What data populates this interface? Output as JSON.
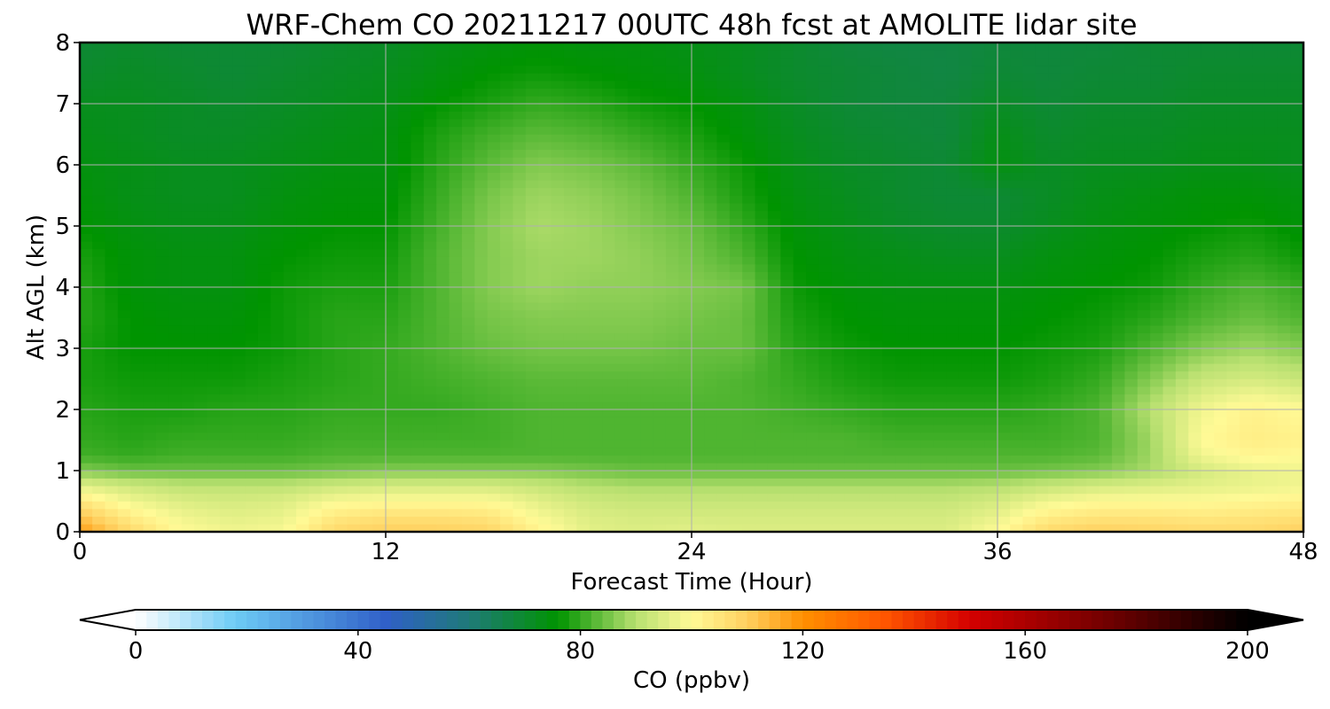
{
  "chart_data": {
    "type": "heatmap",
    "title": "WRF-Chem CO  20211217 00UTC 48h fcst at AMOLITE lidar site",
    "xlabel": "Forecast Time (Hour)",
    "ylabel": "Alt AGL (km)",
    "xlim": [
      0,
      48
    ],
    "ylim": [
      0,
      8
    ],
    "xticks": [
      0,
      12,
      24,
      36,
      48
    ],
    "yticks": [
      0,
      1,
      2,
      3,
      4,
      5,
      6,
      7,
      8
    ],
    "grid": true,
    "x_hours": [
      0,
      2,
      4,
      6,
      8,
      10,
      12,
      14,
      16,
      18,
      20,
      22,
      24,
      26,
      28,
      30,
      32,
      34,
      36,
      38,
      40,
      42,
      44,
      46,
      48
    ],
    "alt_km": [
      0,
      0.25,
      0.5,
      0.75,
      1.0,
      1.25,
      1.5,
      2.0,
      2.5,
      3.0,
      3.5,
      4.0,
      4.5,
      5.0,
      5.5,
      6.0,
      6.5,
      7.0,
      7.5,
      8.0
    ],
    "co_ppbv": [
      [
        118,
        108,
        100,
        98,
        99,
        108,
        110,
        110,
        109,
        102,
        96,
        95,
        96,
        95,
        95,
        95,
        95,
        95,
        100,
        108,
        110,
        109,
        108,
        108,
        110
      ],
      [
        112,
        103,
        98,
        96,
        97,
        104,
        106,
        106,
        105,
        99,
        95,
        94,
        94,
        94,
        94,
        94,
        94,
        94,
        97,
        103,
        105,
        105,
        104,
        105,
        106
      ],
      [
        104,
        98,
        95,
        94,
        95,
        99,
        100,
        100,
        100,
        96,
        93,
        92,
        92,
        92,
        92,
        92,
        92,
        92,
        94,
        98,
        100,
        100,
        100,
        101,
        102
      ],
      [
        96,
        93,
        91,
        91,
        91,
        93,
        94,
        94,
        94,
        92,
        90,
        89,
        89,
        89,
        89,
        89,
        89,
        89,
        90,
        92,
        94,
        95,
        96,
        97,
        98
      ],
      [
        86,
        84,
        84,
        84,
        84,
        85,
        86,
        86,
        86,
        86,
        85,
        84,
        84,
        84,
        84,
        84,
        84,
        84,
        84,
        85,
        86,
        89,
        94,
        97,
        98
      ],
      [
        81,
        80,
        81,
        81,
        81,
        82,
        82,
        82,
        82,
        82,
        82,
        82,
        82,
        82,
        82,
        82,
        82,
        82,
        82,
        82,
        83,
        88,
        98,
        101,
        100
      ],
      [
        80,
        79,
        80,
        80,
        80,
        81,
        81,
        81,
        81,
        82,
        82,
        82,
        82,
        82,
        82,
        82,
        81,
        81,
        81,
        81,
        82,
        88,
        100,
        103,
        102
      ],
      [
        79,
        78,
        78,
        79,
        79,
        80,
        80,
        80,
        81,
        82,
        82,
        82,
        82,
        82,
        81,
        80,
        79,
        79,
        79,
        80,
        82,
        90,
        98,
        102,
        100
      ],
      [
        78,
        77,
        77,
        77,
        78,
        79,
        80,
        81,
        82,
        83,
        83,
        83,
        83,
        82,
        80,
        78,
        77,
        77,
        77,
        78,
        80,
        86,
        92,
        94,
        92
      ],
      [
        78,
        76,
        76,
        76,
        77,
        79,
        80,
        82,
        84,
        85,
        85,
        85,
        84,
        84,
        79,
        77,
        76,
        76,
        76,
        77,
        78,
        82,
        86,
        88,
        86
      ],
      [
        79,
        76,
        75,
        75,
        77,
        79,
        79,
        82,
        85,
        86,
        86,
        86,
        85,
        84,
        78,
        76,
        75,
        75,
        75,
        76,
        77,
        79,
        82,
        84,
        82
      ],
      [
        79,
        75,
        74,
        74,
        77,
        78,
        78,
        82,
        86,
        88,
        87,
        87,
        86,
        85,
        77,
        75,
        74,
        74,
        74,
        75,
        76,
        77,
        80,
        82,
        80
      ],
      [
        78,
        75,
        74,
        74,
        76,
        77,
        77,
        82,
        86,
        88,
        88,
        87,
        85,
        82,
        76,
        74,
        73,
        72,
        72,
        74,
        75,
        76,
        78,
        79,
        77
      ],
      [
        76,
        74,
        73,
        73,
        75,
        76,
        76,
        81,
        86,
        89,
        88,
        86,
        84,
        80,
        75,
        73,
        71,
        70,
        70,
        72,
        74,
        75,
        76,
        77,
        75
      ],
      [
        75,
        73,
        72,
        72,
        74,
        75,
        75,
        80,
        85,
        88,
        87,
        85,
        82,
        78,
        74,
        72,
        70,
        69,
        69,
        71,
        73,
        74,
        75,
        75,
        74
      ],
      [
        74,
        73,
        72,
        72,
        73,
        74,
        74,
        79,
        83,
        86,
        85,
        83,
        80,
        77,
        73,
        71,
        70,
        69,
        74,
        71,
        72,
        72,
        73,
        73,
        72
      ],
      [
        73,
        72,
        71,
        71,
        72,
        73,
        74,
        78,
        81,
        83,
        82,
        80,
        78,
        75,
        72,
        70,
        69,
        68,
        73,
        70,
        71,
        71,
        72,
        72,
        72
      ],
      [
        72,
        72,
        71,
        70,
        71,
        72,
        73,
        76,
        78,
        80,
        79,
        77,
        76,
        74,
        71,
        69,
        68,
        68,
        71,
        69,
        70,
        70,
        71,
        71,
        71
      ],
      [
        70,
        71,
        70,
        69,
        70,
        71,
        72,
        74,
        76,
        77,
        76,
        75,
        74,
        72,
        70,
        69,
        68,
        67,
        69,
        68,
        69,
        69,
        70,
        70,
        70
      ],
      [
        69,
        70,
        69,
        69,
        69,
        70,
        71,
        73,
        74,
        75,
        74,
        74,
        73,
        72,
        70,
        68,
        67,
        67,
        68,
        68,
        68,
        69,
        69,
        69,
        69
      ]
    ],
    "colorbar": {
      "label": "CO  (ppbv)",
      "min": 0,
      "max": 200,
      "ticks": [
        0,
        40,
        80,
        120,
        160,
        200
      ],
      "extend": "both",
      "stops": [
        {
          "v": 0,
          "c": "#ffffff"
        },
        {
          "v": 18,
          "c": "#6dcbf5"
        },
        {
          "v": 45,
          "c": "#3060c8"
        },
        {
          "v": 60,
          "c": "#1f7a78"
        },
        {
          "v": 76,
          "c": "#009400"
        },
        {
          "v": 90,
          "c": "#b8e070"
        },
        {
          "v": 100,
          "c": "#fffa96"
        },
        {
          "v": 110,
          "c": "#ffd060"
        },
        {
          "v": 120,
          "c": "#ff9000"
        },
        {
          "v": 135,
          "c": "#ff5500"
        },
        {
          "v": 150,
          "c": "#d40000"
        },
        {
          "v": 175,
          "c": "#700000"
        },
        {
          "v": 200,
          "c": "#000000"
        }
      ]
    }
  }
}
